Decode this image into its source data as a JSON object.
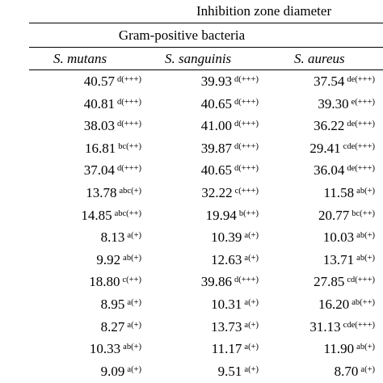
{
  "table": {
    "header": "Inhibition zone diameter",
    "group": "Gram-positive bacteria",
    "columns": [
      "S. mutans",
      "S. sanguinis",
      "S. aureus"
    ],
    "rows": [
      [
        [
          "40.57",
          "d(+++)"
        ],
        [
          "39.93",
          "d(+++)"
        ],
        [
          "37.54",
          "de(+++)"
        ]
      ],
      [
        [
          "40.81",
          "d(+++)"
        ],
        [
          "40.65",
          "d(+++)"
        ],
        [
          "39.30",
          "e(+++)"
        ]
      ],
      [
        [
          "38.03",
          "d(+++)"
        ],
        [
          "41.00",
          "d(+++)"
        ],
        [
          "36.22",
          "de(+++)"
        ]
      ],
      [
        [
          "16.81",
          "bc(++)"
        ],
        [
          "39.87",
          "d(+++)"
        ],
        [
          "29.41",
          "cde(+++)"
        ]
      ],
      [
        [
          "37.04",
          "d(+++)"
        ],
        [
          "40.65",
          "d(+++)"
        ],
        [
          "36.04",
          "de(+++)"
        ]
      ],
      [
        [
          "13.78",
          "abc(+)"
        ],
        [
          "32.22",
          "c(+++)"
        ],
        [
          "11.58",
          "ab(+)"
        ]
      ],
      [
        [
          "14.85",
          "abc(++)"
        ],
        [
          "19.94",
          "b(++)"
        ],
        [
          "20.77",
          "bc(++)"
        ]
      ],
      [
        [
          "8.13",
          "a(+)"
        ],
        [
          "10.39",
          "a(+)"
        ],
        [
          "10.03",
          "ab(+)"
        ]
      ],
      [
        [
          "9.92",
          "ab(+)"
        ],
        [
          "12.63",
          "a(+)"
        ],
        [
          "13.71",
          "ab(+)"
        ]
      ],
      [
        [
          "18.80",
          "c(++)"
        ],
        [
          "39.86",
          "d(+++)"
        ],
        [
          "27.85",
          "cd(+++)"
        ]
      ],
      [
        [
          "8.95",
          "a(+)"
        ],
        [
          "10.31",
          "a(+)"
        ],
        [
          "16.20",
          "ab(++)"
        ]
      ],
      [
        [
          "8.27",
          "a(+)"
        ],
        [
          "13.73",
          "a(+)"
        ],
        [
          "31.13",
          "cde(+++)"
        ]
      ],
      [
        [
          "10.33",
          "ab(+)"
        ],
        [
          "11.17",
          "a(+)"
        ],
        [
          "11.90",
          "ab(+)"
        ]
      ],
      [
        [
          "9.09",
          "a(+)"
        ],
        [
          "9.51",
          "a(+)"
        ],
        [
          "8.70",
          "a(+)"
        ]
      ]
    ]
  }
}
